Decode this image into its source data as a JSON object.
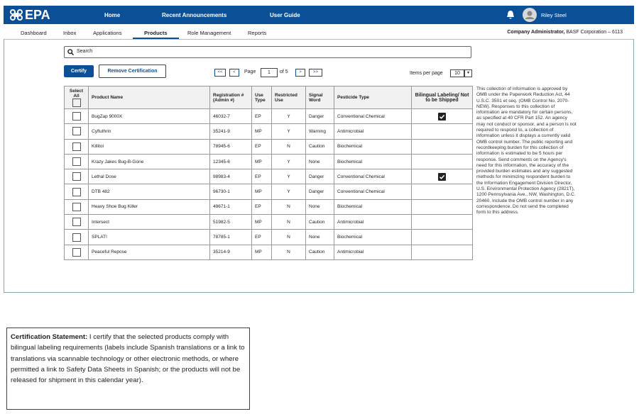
{
  "header": {
    "logo": "EPA",
    "nav": [
      "Home",
      "Recent Announcements",
      "User Guide"
    ],
    "user": "Riley Steel"
  },
  "tabs": {
    "items": [
      "Dashboard",
      "Inbox",
      "Applications",
      "Products",
      "Role Management",
      "Reports"
    ],
    "active": 3
  },
  "account": {
    "role": "Company Administrator,",
    "org": "BASF Corporation – 6113"
  },
  "search": {
    "placeholder": "Search"
  },
  "buttons": {
    "certify": "Certify",
    "remove": "Remove Certification"
  },
  "pagination": {
    "first": "<<",
    "prev": "<",
    "page_label": "Page",
    "current": "1",
    "of_label": "of 5",
    "next": ">",
    "last": ">>"
  },
  "items_per_page": {
    "label": "Items per page",
    "value": "10"
  },
  "table": {
    "columns": [
      "Select All",
      "Product Name",
      "Registration # (Admin #)",
      "Use Type",
      "Restricted Use",
      "Signal Word",
      "Pesticide Type",
      "Bilingual Labeling/ Not to be Shipped"
    ],
    "rows": [
      {
        "product": "BugZap 9000X",
        "registration": "46032-7",
        "use_type": "EP",
        "restricted": "Y",
        "signal": "Danger",
        "pesticide_type": "Conventional Chemical",
        "bilingual": true
      },
      {
        "product": "Cyfluthrin",
        "registration": "35241-9",
        "use_type": "MP",
        "restricted": "Y",
        "signal": "Warning",
        "pesticide_type": "Antimicrobial",
        "bilingual": false
      },
      {
        "product": "Killitol",
        "registration": "78945-6",
        "use_type": "EP",
        "restricted": "N",
        "signal": "Caution",
        "pesticide_type": "Biochemical",
        "bilingual": false
      },
      {
        "product": "Krazy Jakes Bug-B-Gone",
        "registration": "12345-6",
        "use_type": "MP",
        "restricted": "Y",
        "signal": "None",
        "pesticide_type": "Biochemical",
        "bilingual": false
      },
      {
        "product": "Lethal Dose",
        "registration": "98983-4",
        "use_type": "EP",
        "restricted": "Y",
        "signal": "Danger",
        "pesticide_type": "Conventional Chemical",
        "bilingual": true
      },
      {
        "product": "DTB 482",
        "registration": "96730-1",
        "use_type": "MP",
        "restricted": "Y",
        "signal": "Danger",
        "pesticide_type": "Conventional Chemical",
        "bilingual": false
      },
      {
        "product": "Heavy Shoe Bug Killer",
        "registration": "49671-1",
        "use_type": "EP",
        "restricted": "N",
        "signal": "None",
        "pesticide_type": "Biochemical",
        "bilingual": false
      },
      {
        "product": "Intersect",
        "registration": "51982-5",
        "use_type": "MP",
        "restricted": "N",
        "signal": "Caution",
        "pesticide_type": "Antimicrobial",
        "bilingual": false
      },
      {
        "product": "SPLAT!",
        "registration": "78785-1",
        "use_type": "EP",
        "restricted": "N",
        "signal": "None",
        "pesticide_type": "Biochemical",
        "bilingual": false
      },
      {
        "product": "Peaceful Repose",
        "registration": "35214-9",
        "use_type": "MP",
        "restricted": "N",
        "signal": "Caution",
        "pesticide_type": "Antimicrobial",
        "bilingual": false
      }
    ]
  },
  "notice": "This collection of information is approved by OMB under the Paperwork Reduction Act, 44 U.S.C. 3501 et seq. (OMB Control No. 2070-NEW). Responses to this collection of information are mandatory for certain persons, as specified at 40 CFR Part 152. An agency may not conduct or sponsor, and a person is not required to respond to, a collection of information unless it displays a currently valid OMB control number. The public reporting and recordkeeping burden for this collection of information is estimated to be 5 hours per response. Send comments on the Agency's need for this information, the accuracy of the provided burden estimates and any suggested methods for minimizing respondent burden to the Information Engagement Division Director, U.S. Environmental Protection Agency (2821T), 1200 Pennsylvania Ave., NW, Washington, D.C. 20460. Include the OMB control number in any correspondence. Do not send the completed form to this address.",
  "certification": {
    "label": "Certification Statement:",
    "text": "I certify that the selected products comply with bilingual labeling requirements (labels include Spanish translations or a link to translations via scannable technology or other electronic methods, or where permitted a link to Safety Data Sheets in Spanish; or the products will not be released for shipment in this calendar year)."
  }
}
